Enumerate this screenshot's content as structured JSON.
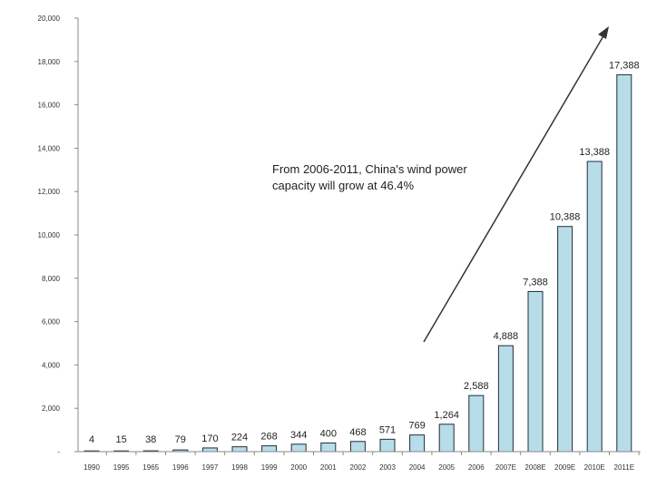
{
  "chart_data": {
    "type": "bar",
    "categories": [
      "1990",
      "1995",
      "1965",
      "1996",
      "1997",
      "1998",
      "1999",
      "2000",
      "2001",
      "2002",
      "2003",
      "2004",
      "2005",
      "2006",
      "2007E",
      "2008E",
      "2009E",
      "2010E",
      "2011E"
    ],
    "values": [
      4,
      15,
      38,
      79,
      170,
      224,
      268,
      344,
      400,
      468,
      571,
      769,
      1264,
      2588,
      4888,
      7388,
      10388,
      13388,
      17388
    ],
    "value_labels": [
      "4",
      "15",
      "38",
      "79",
      "170",
      "224",
      "268",
      "344",
      "400",
      "468",
      "571",
      "769",
      "1,264",
      "2,588",
      "4,888",
      "7,388",
      "10,388",
      "13,388",
      "17,388"
    ],
    "y_ticks": [
      0,
      2000,
      4000,
      6000,
      8000,
      10000,
      12000,
      14000,
      16000,
      18000,
      20000
    ],
    "y_tick_labels": [
      "-",
      "2,000",
      "4,000",
      "6,000",
      "8,000",
      "10,000",
      "12,000",
      "14,000",
      "16,000",
      "18,000",
      "20,000"
    ],
    "ylim": [
      0,
      20000
    ],
    "grid": false,
    "legend": "none",
    "title": "",
    "xlabel": "",
    "ylabel": "",
    "annotation": "From 2006-2011, China's wind power capacity will grow at 46.4%",
    "colors": {
      "bar_fill": "#b7dde8",
      "bar_stroke": "#1f2d3a",
      "axis": "#888888",
      "arrow": "#333333"
    }
  }
}
